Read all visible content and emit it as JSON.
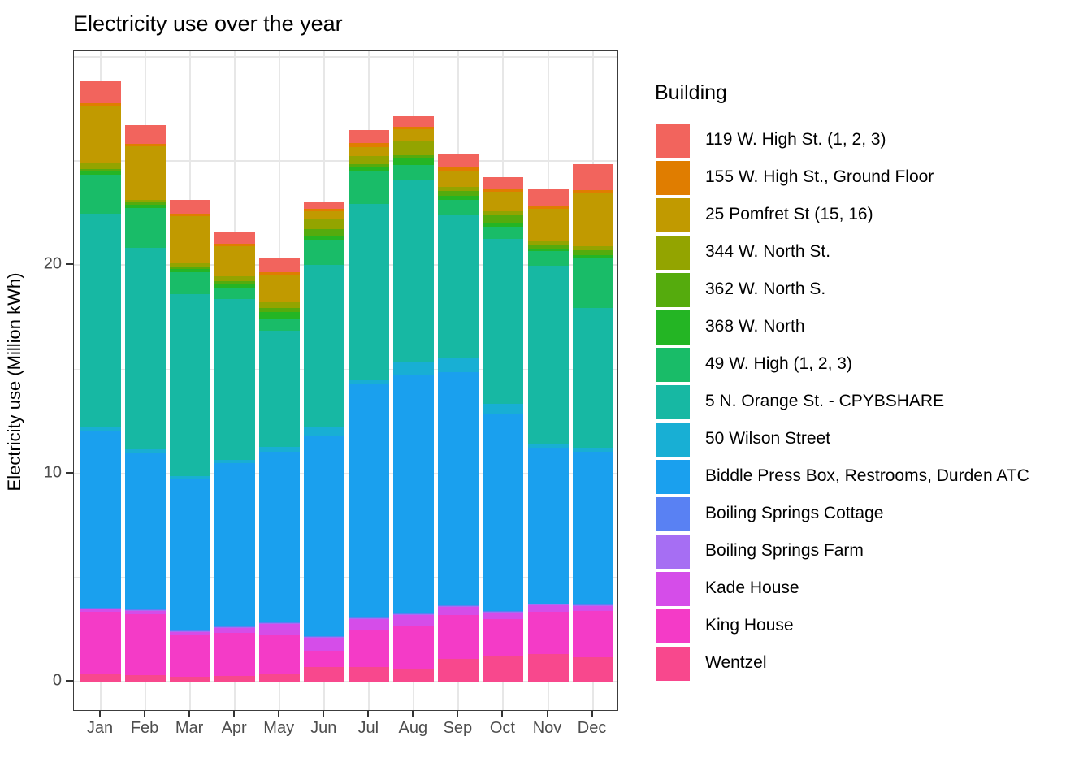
{
  "title": "Electricity use over the year",
  "y_axis": {
    "label": "Electricity use (Million kWh)"
  },
  "legend": {
    "title": "Building"
  },
  "chart_data": {
    "type": "bar",
    "subtype": "stacked",
    "title": "Electricity use over the year",
    "xlabel": "",
    "ylabel": "Electricity use (Million kWh)",
    "legend_title": "Building",
    "legend_position": "right",
    "grid": true,
    "ylim": [
      -1.44,
      30.28
    ],
    "yticks": [
      0,
      10,
      20
    ],
    "major_gridlines": [
      0,
      10,
      20,
      30
    ],
    "minor_gridlines": [
      5,
      15,
      25
    ],
    "categories": [
      "Jan",
      "Feb",
      "Mar",
      "Apr",
      "May",
      "Jun",
      "Jul",
      "Aug",
      "Sep",
      "Oct",
      "Nov",
      "Dec"
    ],
    "series": [
      {
        "name": "119 W. High St. (1, 2, 3)",
        "color": "#F2645D",
        "values": [
          1.05,
          0.9,
          0.66,
          0.55,
          0.66,
          0.35,
          0.63,
          0.51,
          0.59,
          0.55,
          0.86,
          1.25
        ]
      },
      {
        "name": "155 W. High St., Ground Floor",
        "color": "#E07D00",
        "values": [
          0.12,
          0.12,
          0.12,
          0.12,
          0.12,
          0.12,
          0.16,
          0.12,
          0.16,
          0.16,
          0.12,
          0.12
        ]
      },
      {
        "name": "25 Pomfret St (15, 16)",
        "color": "#C19A00",
        "values": [
          2.77,
          2.58,
          2.27,
          1.45,
          1.33,
          0.39,
          0.43,
          0.55,
          0.78,
          0.9,
          1.52,
          2.54
        ]
      },
      {
        "name": "344 W. North St.",
        "color": "#93A400",
        "values": [
          0.27,
          0.12,
          0.16,
          0.2,
          0.27,
          0.47,
          0.39,
          0.7,
          0.23,
          0.2,
          0.2,
          0.23
        ]
      },
      {
        "name": "362 W. North S.",
        "color": "#55AB0D",
        "values": [
          0.12,
          0.12,
          0.12,
          0.16,
          0.2,
          0.31,
          0.16,
          0.16,
          0.2,
          0.39,
          0.16,
          0.2
        ]
      },
      {
        "name": "368 W. North",
        "color": "#24B524",
        "values": [
          0.16,
          0.16,
          0.16,
          0.16,
          0.31,
          0.2,
          0.16,
          0.31,
          0.2,
          0.16,
          0.12,
          0.16
        ]
      },
      {
        "name": "49 W. High (1, 2, 3)",
        "color": "#19BC68",
        "values": [
          1.88,
          1.91,
          1.02,
          0.55,
          0.59,
          1.21,
          1.6,
          0.7,
          0.7,
          0.59,
          0.7,
          2.38
        ]
      },
      {
        "name": "5 N. Orange St. - CPYBSHARE",
        "color": "#17B8A3",
        "values": [
          10.23,
          9.65,
          8.75,
          7.73,
          5.59,
          7.8,
          8.46,
          8.71,
          6.88,
          7.92,
          8.59,
          6.76
        ]
      },
      {
        "name": "50 Wilson Street",
        "color": "#18AFD4",
        "values": [
          0.2,
          0.16,
          0.16,
          0.16,
          0.23,
          0.39,
          0.16,
          0.66,
          0.7,
          0.47,
          0.16,
          0.16
        ]
      },
      {
        "name": "Biddle Press Box, Restrooms, Durden ATC",
        "color": "#1AA0EE",
        "values": [
          8.48,
          7.54,
          7.27,
          7.85,
          8.2,
          9.61,
          11.25,
          11.45,
          11.21,
          9.49,
          7.5,
          7.34
        ]
      },
      {
        "name": "Boiling Springs Cottage",
        "color": "#5981F3",
        "values": [
          0.04,
          0.04,
          0.04,
          0.04,
          0.04,
          0.05,
          0.04,
          0.04,
          0.04,
          0.04,
          0.04,
          0.04
        ]
      },
      {
        "name": "Boiling Springs Farm",
        "color": "#A66EF3",
        "values": [
          0.03,
          0.03,
          0.03,
          0.03,
          0.03,
          0.04,
          0.03,
          0.03,
          0.03,
          0.03,
          0.03,
          0.03
        ]
      },
      {
        "name": "Kade House",
        "color": "#D54DE9",
        "values": [
          0.13,
          0.16,
          0.16,
          0.23,
          0.51,
          0.63,
          0.55,
          0.55,
          0.39,
          0.31,
          0.31,
          0.23
        ]
      },
      {
        "name": "King House",
        "color": "#F43BC7",
        "values": [
          2.97,
          2.93,
          1.99,
          2.07,
          1.91,
          0.78,
          1.76,
          2.03,
          2.11,
          1.8,
          2.03,
          2.23
        ]
      },
      {
        "name": "Wentzel",
        "color": "#F8488D",
        "values": [
          0.39,
          0.31,
          0.23,
          0.27,
          0.35,
          0.7,
          0.7,
          0.63,
          1.09,
          1.21,
          1.33,
          1.17
        ]
      }
    ]
  }
}
